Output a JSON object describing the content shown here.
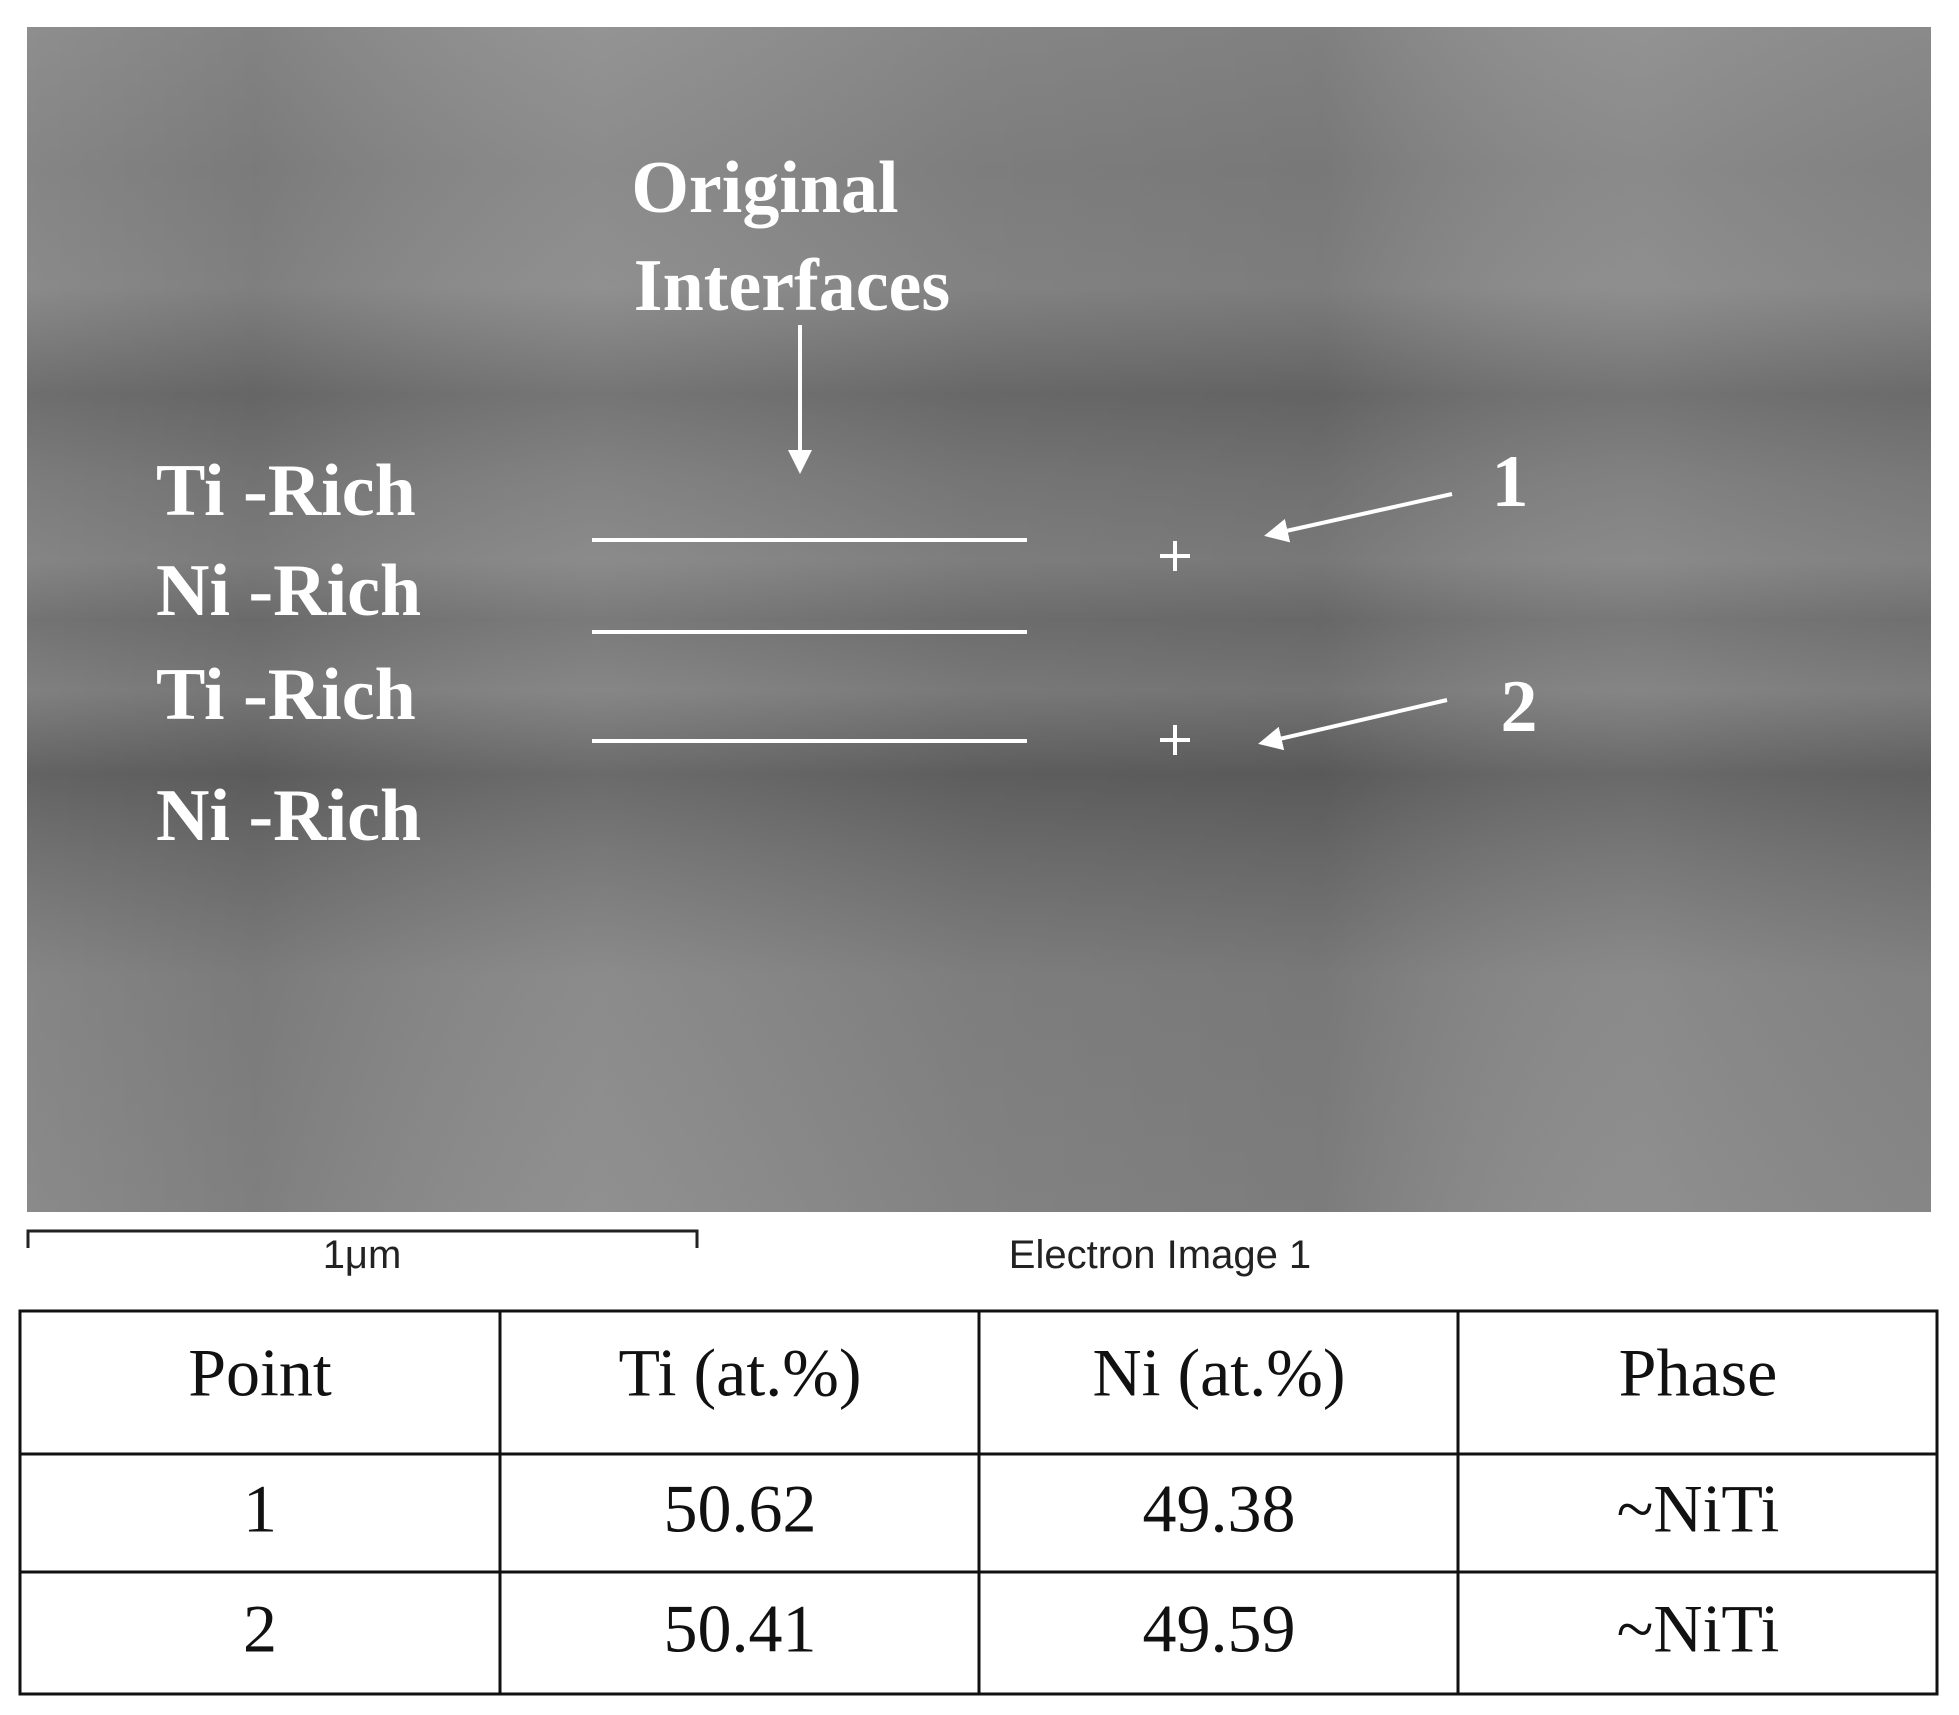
{
  "image": {
    "title_lines": [
      "Original",
      "Interfaces"
    ],
    "layers": [
      "Ti -Rich",
      "Ni -Rich",
      "Ti -Rich",
      "Ni -Rich"
    ],
    "points": [
      "1",
      "2"
    ],
    "scale_bar": "1μm",
    "caption": "Electron Image 1"
  },
  "table": {
    "header": [
      "Point",
      "Ti (at.%)",
      "Ni (at.%)",
      "Phase"
    ],
    "rows": [
      [
        "1",
        "50.62",
        "49.38",
        "~NiTi"
      ],
      [
        "2",
        "50.41",
        "49.59",
        "~NiTi"
      ]
    ]
  }
}
